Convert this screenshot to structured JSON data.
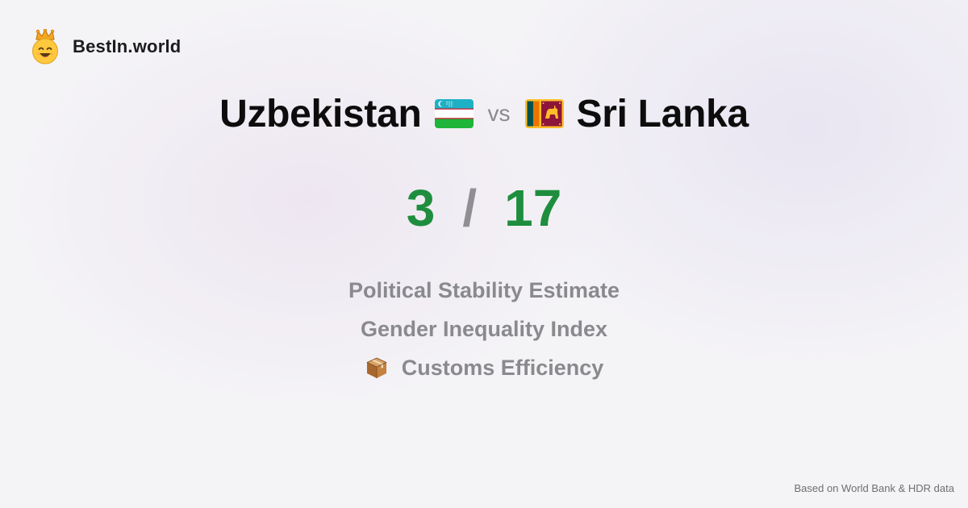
{
  "brand": {
    "name": "BestIn.world",
    "icon": "crowned-smiley-icon"
  },
  "comparison": {
    "left_country": "Uzbekistan",
    "left_flag": "uzbekistan-flag-icon",
    "vs_label": "vs",
    "right_country": "Sri Lanka",
    "right_flag": "sri-lanka-flag-icon"
  },
  "score": {
    "left": "3",
    "separator": "/",
    "right": "17"
  },
  "metrics": [
    {
      "label": "Political Stability Estimate",
      "icon": ""
    },
    {
      "label": "Gender Inequality Index",
      "icon": ""
    },
    {
      "label": "Customs Efficiency",
      "icon": "package-icon"
    }
  ],
  "footer": {
    "note": "Based on World Bank & HDR data"
  },
  "colors": {
    "score": "#1e8e3e",
    "muted": "#8a8a8e",
    "title": "#0d0d0d"
  }
}
